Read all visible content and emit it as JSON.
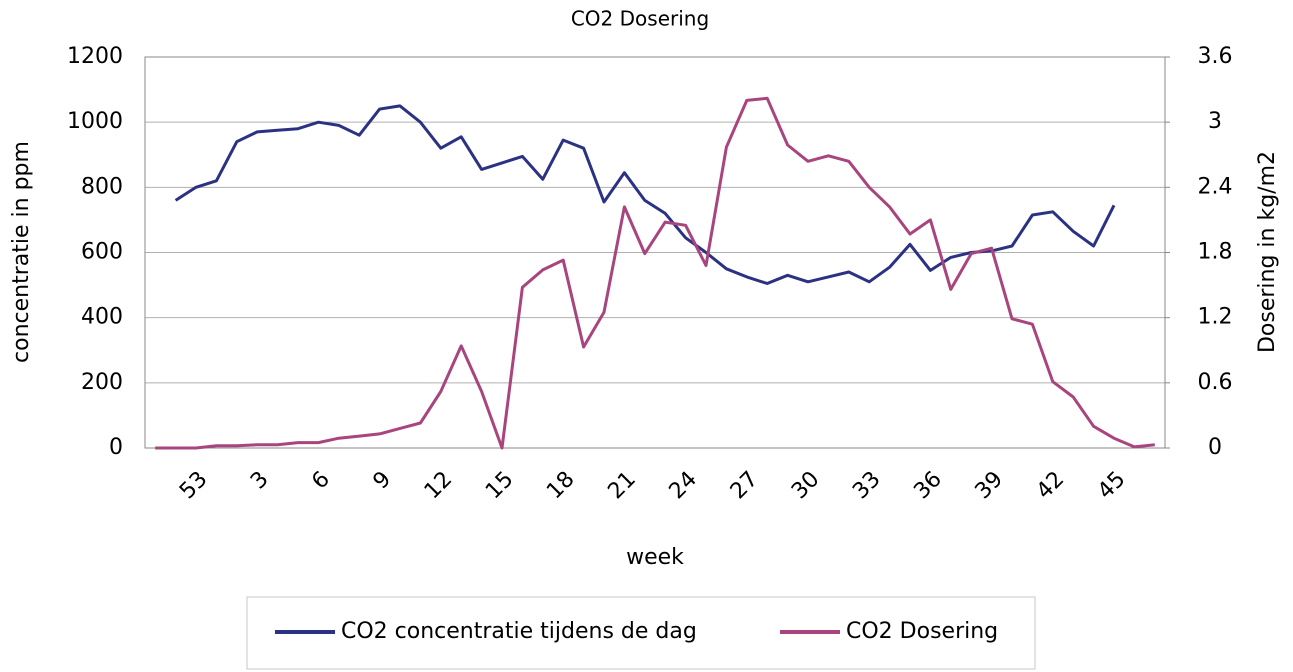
{
  "chart_data": {
    "type": "line",
    "title": "CO2 Dosering",
    "x_label": "week",
    "y_label": "concentratie in ppm",
    "y2_label": "Dosering in kg/m2",
    "categories": [
      null,
      null,
      "53",
      null,
      null,
      "3",
      null,
      null,
      "6",
      null,
      null,
      "9",
      null,
      null,
      "12",
      null,
      null,
      "15",
      null,
      null,
      "18",
      null,
      null,
      "21",
      null,
      null,
      "24",
      null,
      null,
      "27",
      null,
      null,
      "30",
      null,
      null,
      "33",
      null,
      null,
      "36",
      null,
      null,
      "39",
      null,
      null,
      "42",
      null,
      null,
      "45",
      null,
      null
    ],
    "series": [
      {
        "name": "CO2 concentratie tijdens de dag",
        "color": "#2b3283",
        "values": [
          null,
          760,
          800,
          820,
          940,
          970,
          975,
          980,
          1000,
          990,
          960,
          1040,
          1050,
          1000,
          920,
          955,
          855,
          875,
          895,
          825,
          945,
          920,
          755,
          845,
          760,
          720,
          645,
          600,
          550,
          525,
          505,
          530,
          510,
          525,
          540,
          510,
          555,
          625,
          545,
          585,
          600,
          605,
          620,
          715,
          725,
          665,
          620,
          745,
          null,
          null
        ]
      },
      {
        "name": "CO2 Dosering",
        "color": "#a8457e",
        "axis": "y2",
        "values": [
          0,
          0,
          0,
          0.02,
          0.02,
          0.03,
          0.03,
          0.05,
          0.05,
          0.09,
          0.11,
          0.13,
          0.18,
          0.23,
          0.52,
          0.94,
          0.52,
          0,
          1.48,
          1.64,
          1.73,
          0.93,
          1.25,
          2.22,
          1.79,
          2.08,
          2.05,
          1.68,
          2.77,
          3.2,
          3.22,
          2.79,
          2.64,
          2.69,
          2.64,
          2.4,
          2.22,
          1.97,
          2.1,
          1.46,
          1.79,
          1.84,
          1.19,
          1.14,
          0.61,
          0.47,
          0.2,
          0.09,
          0.01,
          0.03
        ]
      }
    ],
    "ylim": [
      0,
      1200
    ],
    "yticks": [
      0,
      200,
      400,
      600,
      800,
      1000,
      1200
    ],
    "y2lim": [
      0,
      3.6
    ],
    "y2ticks": [
      0,
      0.6,
      1.2,
      1.8,
      2.4,
      3,
      3.6
    ],
    "grid": true,
    "legend": "bottom"
  }
}
